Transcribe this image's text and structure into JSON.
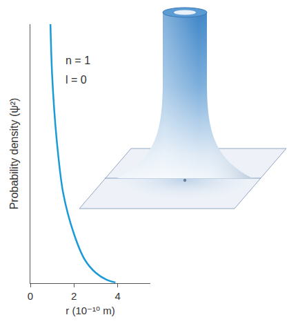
{
  "chart_data": {
    "type": "line",
    "x_label": "r (10⁻¹⁰ m)",
    "y_label": "Probability density (ψ²)",
    "annotations": [
      "n = 1",
      "l = 0"
    ],
    "x": [
      0.92,
      1.0,
      1.2,
      1.5,
      2.0,
      2.5,
      3.0,
      3.5,
      3.9
    ],
    "values": [
      1.0,
      0.8,
      0.56,
      0.35,
      0.19,
      0.09,
      0.04,
      0.013,
      0.003
    ],
    "color": "#1a9ad6",
    "xlim": [
      0,
      5.5
    ],
    "xticks": [
      0,
      2,
      4
    ],
    "ylim": [
      0,
      1
    ],
    "yticks": [],
    "tick_labels": "x",
    "grid": false
  }
}
